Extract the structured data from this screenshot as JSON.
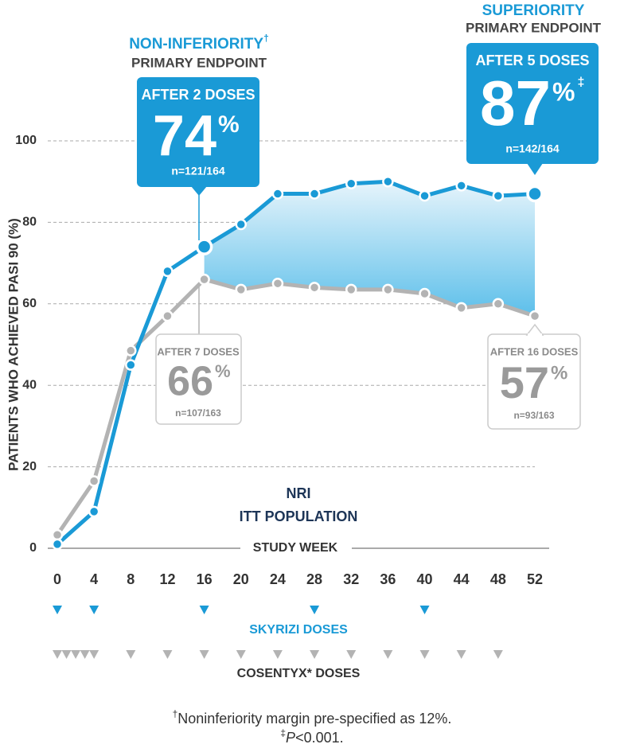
{
  "chart_data": {
    "type": "line",
    "ylabel": "PATIENTS WHO ACHIEVED PASI 90 (%)",
    "xlabel": "STUDY WEEK",
    "x": [
      0,
      4,
      8,
      12,
      16,
      20,
      24,
      28,
      32,
      36,
      40,
      44,
      48,
      52
    ],
    "xlim": [
      0,
      52
    ],
    "xticks": [
      0,
      4,
      8,
      12,
      16,
      20,
      24,
      28,
      32,
      36,
      40,
      44,
      48,
      52
    ],
    "ylim": [
      0,
      100
    ],
    "yticks": [
      0,
      20,
      40,
      60,
      80,
      100
    ],
    "grid": true,
    "series": [
      {
        "color": "#1a9ad6",
        "values": [
          1,
          9,
          45,
          68,
          74,
          79.5,
          87,
          87,
          89.5,
          90,
          86.5,
          89,
          86.5,
          87
        ]
      },
      {
        "color": "#b3b3b3",
        "values": [
          3.3,
          16.5,
          48.5,
          57,
          66,
          63.5,
          65,
          64,
          63.5,
          63.5,
          62.5,
          59,
          60,
          57
        ]
      }
    ],
    "annotations": [
      {
        "title": "NON-INFERIORITY",
        "title_mark": "†",
        "subtitle": "PRIMARY ENDPOINT",
        "doses": "AFTER 2 DOSES",
        "unit": "%",
        "n": "n=121/164"
      },
      {
        "title": "SUPERIORITY",
        "subtitle": "PRIMARY ENDPOINT",
        "doses": "AFTER 5 DOSES",
        "unit": "%",
        "mark": "‡",
        "n": "n=142/164"
      },
      {
        "doses": "AFTER 7 DOSES",
        "unit": "%",
        "n": "n=107/163"
      },
      {
        "doses": "AFTER 16 DOSES",
        "unit": "%",
        "n": "n=93/163"
      }
    ],
    "notes": [
      "NRI",
      "ITT POPULATION"
    ],
    "doses": [
      {
        "label": "SKYRIZI DOSES",
        "color": "#1a9ad6",
        "weeks": [
          0,
          4,
          16,
          28,
          40
        ]
      },
      {
        "label": "COSENTYX* DOSES",
        "color": "#b3b3b3",
        "weeks": [
          0,
          1,
          2,
          3,
          4,
          8,
          12,
          16,
          20,
          24,
          28,
          32,
          36,
          40,
          44,
          48
        ]
      }
    ],
    "footnotes": [
      {
        "mark": "†",
        "text": "Noninferiority margin pre-specified as 12%."
      },
      {
        "mark": "‡",
        "italic": "P",
        "text": "<0.001."
      }
    ]
  }
}
